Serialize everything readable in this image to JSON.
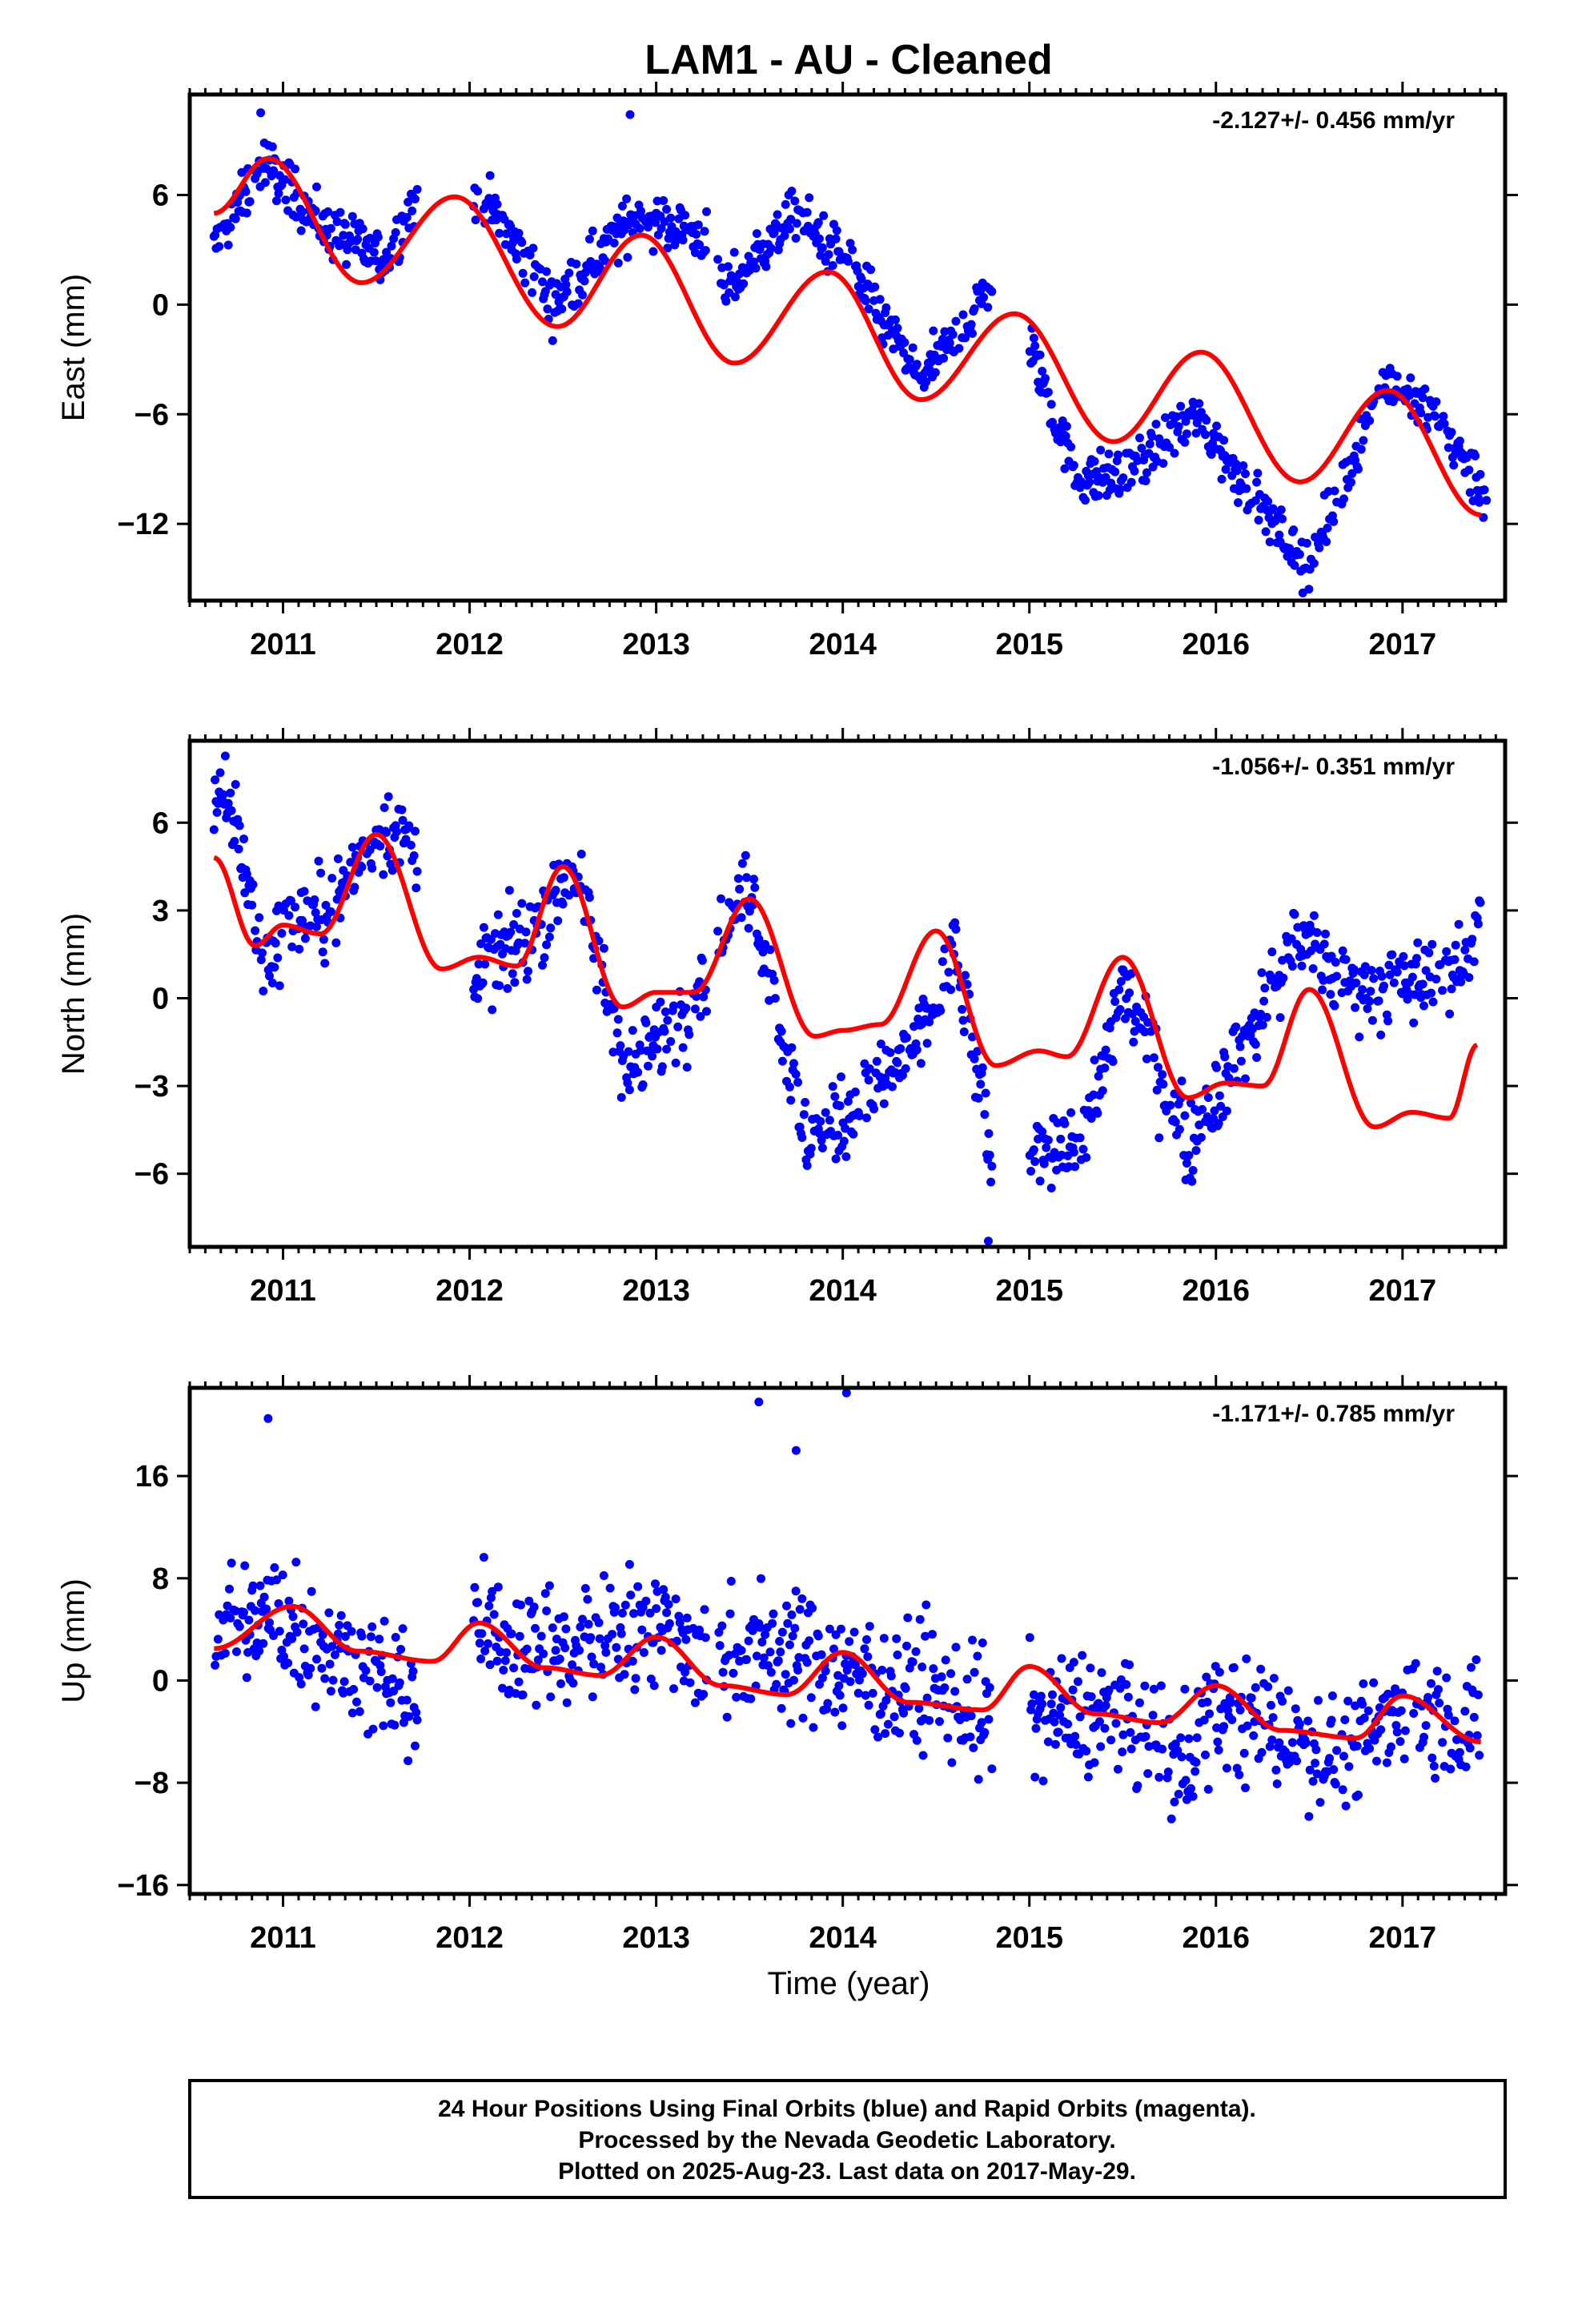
{
  "title": "LAM1  - AU - Cleaned",
  "xlabel": "Time (year)",
  "footer": [
    "24 Hour Positions Using Final Orbits (blue) and Rapid Orbits (magenta).",
    "Processed by the Nevada Geodetic Laboratory.",
    "Plotted on 2025-Aug-23. Last data on 2017-May-29."
  ],
  "colors": {
    "data": "#0000ff",
    "model": "#ff0000",
    "frame": "#000000"
  },
  "chart_data": [
    {
      "type": "scatter",
      "ylabel": "East (mm)",
      "rate_text": "-2.127+/- 0.456 mm/yr",
      "xlim": [
        2010.5,
        2017.55
      ],
      "ylim": [
        -16.2,
        11.5
      ],
      "x_ticks": [
        2011,
        2012,
        2013,
        2014,
        2015,
        2016,
        2017
      ],
      "y_ticks": [
        6,
        0,
        -6,
        -12
      ],
      "model": {
        "name": "model fit",
        "x": [
          2010.63,
          2010.92,
          2011.42,
          2011.92,
          2012.47,
          2012.92,
          2013.42,
          2013.92,
          2014.42,
          2014.92,
          2015.45,
          2015.92,
          2016.45,
          2016.92,
          2017.42
        ],
        "y": [
          5,
          8,
          1.2,
          5.9,
          -1.2,
          3.8,
          -3.2,
          1.8,
          -5.2,
          -0.5,
          -7.5,
          -2.6,
          -9.7,
          -4.7,
          -11.5
        ]
      },
      "data_trend": {
        "x": [
          2010.63,
          2010.9,
          2011.25,
          2011.55,
          2011.7,
          2012.1,
          2012.45,
          2012.9,
          2013.3,
          2013.35,
          2013.75,
          2014.05,
          2014.4,
          2014.6,
          2014.78,
          2015.0,
          2015.25,
          2015.5,
          2015.9,
          2016.2,
          2016.5,
          2016.9,
          2017.2,
          2017.45
        ],
        "y": [
          3,
          7.8,
          4,
          2.5,
          5.5,
          5.5,
          0,
          5,
          3.5,
          0.5,
          5,
          2,
          -4,
          -2,
          1,
          -2,
          -9.5,
          -9.5,
          -6,
          -10.5,
          -14.5,
          -4,
          -6.5,
          -10.5
        ]
      },
      "data_noise": 1.0,
      "outliers": {
        "x": [
          2010.88,
          2012.86
        ],
        "y": [
          10.5,
          10.4
        ]
      }
    },
    {
      "type": "scatter",
      "ylabel": "North (mm)",
      "rate_text": "-1.056+/- 0.351 mm/yr",
      "xlim": [
        2010.5,
        2017.55
      ],
      "ylim": [
        -8.5,
        8.8
      ],
      "x_ticks": [
        2011,
        2012,
        2013,
        2014,
        2015,
        2016,
        2017
      ],
      "y_ticks": [
        6,
        3,
        0,
        -3,
        -6
      ],
      "model": {
        "name": "model fit",
        "x": [
          2010.63,
          2010.85,
          2011.0,
          2011.2,
          2011.5,
          2011.85,
          2012.05,
          2012.25,
          2012.5,
          2012.82,
          2013.0,
          2013.2,
          2013.5,
          2013.85,
          2014.0,
          2014.2,
          2014.5,
          2014.82,
          2015.05,
          2015.2,
          2015.5,
          2015.85,
          2016.05,
          2016.25,
          2016.5,
          2016.85,
          2017.05,
          2017.25,
          2017.4
        ],
        "y": [
          4.8,
          1.8,
          2.5,
          2.2,
          5.6,
          1,
          1.4,
          1.1,
          4.5,
          -0.3,
          0.2,
          0.2,
          3.4,
          -1.3,
          -1.1,
          -0.9,
          2.3,
          -2.3,
          -1.8,
          -2,
          1.4,
          -3.4,
          -2.9,
          -3,
          0.3,
          -4.4,
          -3.9,
          -4.1,
          -1.6
        ]
      },
      "data_trend": {
        "x": [
          2010.63,
          2010.75,
          2010.9,
          2011.0,
          2011.25,
          2011.55,
          2011.7,
          2012.05,
          2012.3,
          2012.55,
          2012.7,
          2012.85,
          2013.2,
          2013.5,
          2013.8,
          2014.0,
          2014.2,
          2014.45,
          2014.6,
          2014.75,
          2014.8,
          2015.05,
          2015.3,
          2015.5,
          2015.85,
          2016.2,
          2016.45,
          2016.7,
          2017.0,
          2017.35,
          2017.42
        ],
        "y": [
          7,
          6,
          1,
          2.5,
          3,
          6,
          5,
          1,
          2,
          4.5,
          1,
          -2.5,
          0,
          4,
          -5,
          -4,
          -3,
          -1,
          1.5,
          -3.5,
          -6.5,
          -5,
          -5,
          0.5,
          -5,
          -1,
          2,
          0.5,
          0.5,
          1,
          4
        ]
      },
      "data_noise": 1.0,
      "outliers": {
        "x": [
          2014.78
        ],
        "y": [
          -8.3
        ]
      }
    },
    {
      "type": "scatter",
      "ylabel": "Up (mm)",
      "rate_text": "-1.171+/- 0.785 mm/yr",
      "xlim": [
        2010.5,
        2017.55
      ],
      "ylim": [
        -16.7,
        22.9
      ],
      "x_ticks": [
        2011,
        2012,
        2013,
        2014,
        2015,
        2016,
        2017
      ],
      "y_ticks": [
        16,
        8,
        0,
        -8,
        -16
      ],
      "model": {
        "name": "model fit",
        "x": [
          2010.63,
          2011.05,
          2011.4,
          2011.8,
          2012.05,
          2012.4,
          2012.7,
          2013.0,
          2013.35,
          2013.7,
          2014.0,
          2014.35,
          2014.75,
          2015.0,
          2015.35,
          2015.7,
          2016.0,
          2016.35,
          2016.75,
          2017.0,
          2017.42
        ],
        "y": [
          2.5,
          5.8,
          2.3,
          1.5,
          4.5,
          1,
          0.4,
          3.4,
          -0.4,
          -1.1,
          2.2,
          -1.7,
          -2.3,
          1.1,
          -2.6,
          -3.3,
          -0.4,
          -3.9,
          -4.5,
          -1.2,
          -4.8
        ]
      },
      "data_trend": {
        "x": [
          2010.63,
          2011.0,
          2011.4,
          2011.7,
          2012.0,
          2012.5,
          2013.0,
          2013.3,
          2013.6,
          2014.0,
          2014.5,
          2014.8,
          2015.1,
          2015.5,
          2015.8,
          2016.0,
          2016.3,
          2016.7,
          2017.0,
          2017.42
        ],
        "y": [
          4,
          5,
          1,
          -1,
          4,
          2,
          5,
          1.5,
          3,
          1,
          -1,
          -3,
          -2.5,
          -3,
          -7,
          -2,
          -4,
          -6,
          -2,
          -4
        ]
      },
      "data_noise": 3.5,
      "outliers": {
        "x": [
          2010.92,
          2013.55,
          2014.02,
          2013.75
        ],
        "y": [
          20.5,
          21.8,
          22.5,
          18
        ]
      }
    }
  ]
}
